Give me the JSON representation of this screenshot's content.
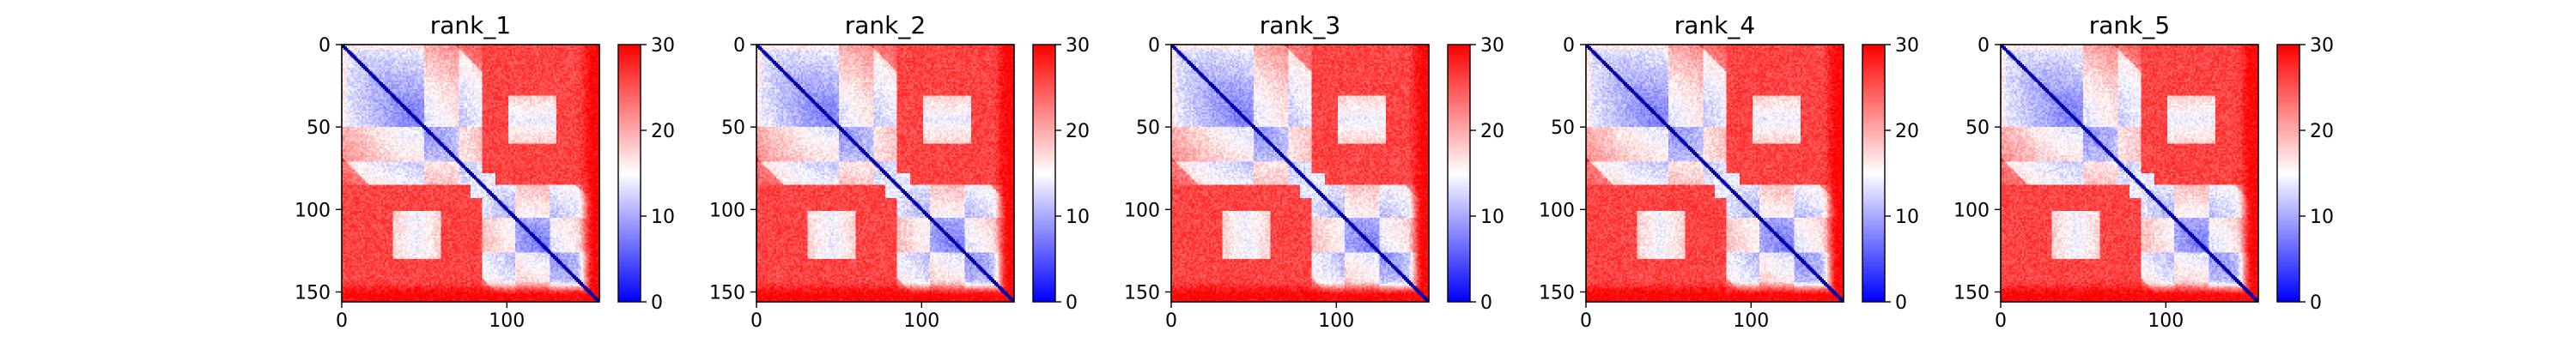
{
  "colors": {
    "low": "#0000ff",
    "mid": "#ffffff",
    "high": "#ff0000",
    "diagonal": "#0000a8"
  },
  "colormap": "bwr",
  "chart_data": [
    {
      "type": "heatmap",
      "title": "rank_1",
      "matrix_size": 156,
      "xticks": [
        0,
        100
      ],
      "yticks": [
        0,
        50,
        100,
        150
      ],
      "color_range": [
        0,
        30
      ],
      "colorbar_ticks": [
        0,
        10,
        20,
        30
      ],
      "structure": {
        "domain_split": 85,
        "lower_domain_loop": [
          50,
          70
        ],
        "upper_domain_loop": [
          105,
          125
        ],
        "inter_domain_contact": [
          30,
          60,
          100,
          130
        ]
      }
    },
    {
      "type": "heatmap",
      "title": "rank_2",
      "matrix_size": 156,
      "xticks": [
        0,
        100
      ],
      "yticks": [
        0,
        50,
        100,
        150
      ],
      "color_range": [
        0,
        30
      ],
      "colorbar_ticks": [
        0,
        10,
        20,
        30
      ],
      "structure": {
        "domain_split": 85,
        "lower_domain_loop": [
          50,
          70
        ],
        "upper_domain_loop": [
          105,
          125
        ],
        "inter_domain_contact": [
          30,
          60,
          100,
          130
        ]
      }
    },
    {
      "type": "heatmap",
      "title": "rank_3",
      "matrix_size": 156,
      "xticks": [
        0,
        100
      ],
      "yticks": [
        0,
        50,
        100,
        150
      ],
      "color_range": [
        0,
        30
      ],
      "colorbar_ticks": [
        0,
        10,
        20,
        30
      ],
      "structure": {
        "domain_split": 85,
        "lower_domain_loop": [
          50,
          70
        ],
        "upper_domain_loop": [
          105,
          125
        ],
        "inter_domain_contact": [
          30,
          60,
          100,
          130
        ]
      }
    },
    {
      "type": "heatmap",
      "title": "rank_4",
      "matrix_size": 156,
      "xticks": [
        0,
        100
      ],
      "yticks": [
        0,
        50,
        100,
        150
      ],
      "color_range": [
        0,
        30
      ],
      "colorbar_ticks": [
        0,
        10,
        20,
        30
      ],
      "structure": {
        "domain_split": 85,
        "lower_domain_loop": [
          50,
          70
        ],
        "upper_domain_loop": [
          105,
          125
        ],
        "inter_domain_contact": [
          30,
          60,
          100,
          130
        ]
      }
    },
    {
      "type": "heatmap",
      "title": "rank_5",
      "matrix_size": 156,
      "xticks": [
        0,
        100
      ],
      "yticks": [
        0,
        50,
        100,
        150
      ],
      "color_range": [
        0,
        30
      ],
      "colorbar_ticks": [
        0,
        10,
        20,
        30
      ],
      "structure": {
        "domain_split": 85,
        "lower_domain_loop": [
          50,
          70
        ],
        "upper_domain_loop": [
          105,
          125
        ],
        "inter_domain_contact": [
          30,
          60,
          100,
          130
        ]
      }
    }
  ]
}
